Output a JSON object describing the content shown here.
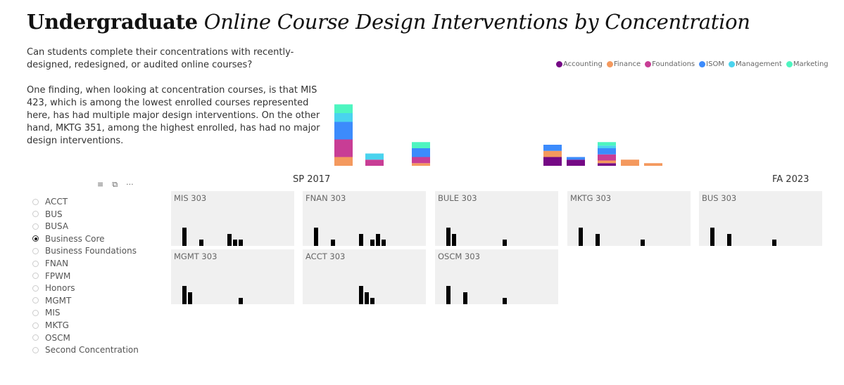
{
  "title": {
    "bold": "Undergraduate",
    "italic": "Online Course Design Interventions by Concentration"
  },
  "intro": {
    "question": "Can students complete their concentrations with recently-designed, redesigned, or audited online courses?",
    "finding": "One finding, when looking at concentration courses, is that MIS 423, which is among the lowest enrolled courses represented here, has had multiple major design interventions. On the other hand, MKTG 351, among the highest enrolled, has had no major design interventions."
  },
  "slicer": {
    "icons": [
      "filter-icon",
      "focus-mode-icon",
      "more-options-icon"
    ],
    "options": [
      "ACCT",
      "BUS",
      "BUSA",
      "Business Core",
      "Business Foundations",
      "FNAN",
      "FPWM",
      "Honors",
      "MGMT",
      "MIS",
      "MKTG",
      "OSCM",
      "Second Concentration"
    ],
    "selected": "Business Core"
  },
  "chart_data": [
    {
      "type": "bar",
      "stacked": true,
      "legend_position": "top-right",
      "grid": false,
      "series_names": [
        "Accounting",
        "Finance",
        "Foundations",
        "ISOM",
        "Management",
        "Marketing"
      ],
      "colors": {
        "Accounting": "#750985",
        "Finance": "#F4995E",
        "Foundations": "#C83D95",
        "ISOM": "#3C8BFC",
        "Management": "#4AD3EE",
        "Marketing": "#4EF5C0"
      },
      "x_range": [
        "SP 2017",
        "FA 2023"
      ],
      "bars": [
        {
          "x": 0,
          "values": {
            "Finance": 1,
            "Foundations": 2,
            "ISOM": 2,
            "Management": 1,
            "Marketing": 1
          }
        },
        {
          "x": 4,
          "values": {
            "Foundations": 0.7,
            "Management": 0.7
          }
        },
        {
          "x": 10,
          "values": {
            "Finance": 0.3,
            "Foundations": 0.7,
            "ISOM": 1,
            "Marketing": 0.7
          }
        },
        {
          "x": 27,
          "values": {
            "Accounting": 1,
            "Finance": 0.7,
            "ISOM": 0.7
          }
        },
        {
          "x": 30,
          "values": {
            "Accounting": 0.7,
            "ISOM": 0.3
          }
        },
        {
          "x": 34,
          "values": {
            "Accounting": 0.3,
            "Finance": 0.3,
            "Foundations": 0.7,
            "ISOM": 0.7,
            "Management": 0.3,
            "Marketing": 0.4
          }
        },
        {
          "x": 37,
          "values": {
            "Finance": 0.7
          }
        },
        {
          "x": 40,
          "values": {
            "Finance": 0.3
          }
        }
      ]
    },
    {
      "type": "bar",
      "small_multiples": true,
      "x_start_label": "SP 2017",
      "x_end_label": "FA 2023",
      "bar_color": "#000000",
      "panels": [
        {
          "title": "MIS 303",
          "bars": [
            [
              2,
              3
            ],
            [
              5,
              1
            ],
            [
              10,
              2
            ],
            [
              11,
              1
            ],
            [
              12,
              1
            ]
          ]
        },
        {
          "title": "FNAN 303",
          "bars": [
            [
              2,
              3
            ],
            [
              5,
              1
            ],
            [
              10,
              2
            ],
            [
              12,
              1
            ],
            [
              13,
              2
            ],
            [
              14,
              1
            ]
          ]
        },
        {
          "title": "BULE 303",
          "bars": [
            [
              2,
              3
            ],
            [
              3,
              2
            ],
            [
              12,
              1
            ]
          ]
        },
        {
          "title": "MKTG 303",
          "bars": [
            [
              2,
              3
            ],
            [
              5,
              2
            ],
            [
              13,
              1
            ]
          ]
        },
        {
          "title": "BUS 303",
          "bars": [
            [
              2,
              3
            ],
            [
              5,
              2
            ],
            [
              13,
              1
            ]
          ]
        },
        {
          "title": "MGMT 303",
          "bars": [
            [
              2,
              3
            ],
            [
              3,
              2
            ],
            [
              12,
              1
            ]
          ]
        },
        {
          "title": "ACCT 303",
          "bars": [
            [
              10,
              3
            ],
            [
              11,
              2
            ],
            [
              12,
              1
            ]
          ]
        },
        {
          "title": "OSCM 303",
          "bars": [
            [
              2,
              3
            ],
            [
              5,
              2
            ],
            [
              12,
              1
            ]
          ]
        }
      ]
    }
  ]
}
